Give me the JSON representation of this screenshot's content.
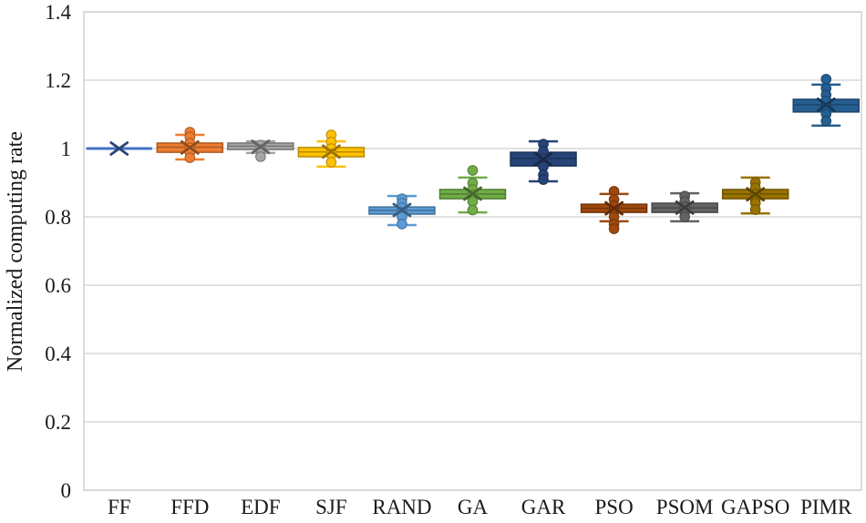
{
  "figure": {
    "background": "#ffffff",
    "grid_color": "#d9d9d9",
    "axis_color": "#d0cece",
    "text_color": "#1a1a1a"
  },
  "chart_data": {
    "type": "boxplot",
    "title": "",
    "xlabel": "",
    "ylabel": "Normalized computing rate",
    "ylim": [
      0,
      1.4
    ],
    "ytick_interval": 0.2,
    "ytick_labels": [
      "0",
      "0.2",
      "0.4",
      "0.6",
      "0.8",
      "1",
      "1.2",
      "1.4"
    ],
    "grid": true,
    "legend": "none",
    "categories": [
      "FF",
      "FFD",
      "EDF",
      "SJF",
      "RAND",
      "GA",
      "GAR",
      "PSO",
      "PSOM",
      "GAPSO",
      "PIMR"
    ],
    "series": [
      {
        "name": "FF",
        "color": "#4472C4",
        "whisker_low": 1.0,
        "q1": 1.0,
        "median": 1.0,
        "q3": 1.0,
        "whisker_high": 1.0,
        "mean": 1.0,
        "points": []
      },
      {
        "name": "FFD",
        "color": "#ED7D31",
        "whisker_low": 0.968,
        "q1": 0.989,
        "median": 1.004,
        "q3": 1.016,
        "whisker_high": 1.04,
        "mean": 1.003,
        "points": [
          1.048,
          1.034,
          1.016,
          1.002,
          0.988,
          0.973
        ]
      },
      {
        "name": "EDF",
        "color": "#A5A5A5",
        "whisker_low": 0.987,
        "q1": 0.997,
        "median": 1.007,
        "q3": 1.016,
        "whisker_high": 1.021,
        "mean": 1.005,
        "points": [
          1.01,
          0.997,
          0.976
        ]
      },
      {
        "name": "SJF",
        "color": "#FFC000",
        "whisker_low": 0.947,
        "q1": 0.976,
        "median": 0.99,
        "q3": 1.003,
        "whisker_high": 1.021,
        "mean": 0.991,
        "points": [
          1.04,
          1.019,
          1.0,
          0.984,
          0.96
        ]
      },
      {
        "name": "RAND",
        "color": "#5B9BD5",
        "whisker_low": 0.776,
        "q1": 0.808,
        "median": 0.819,
        "q3": 0.829,
        "whisker_high": 0.861,
        "mean": 0.82,
        "points": [
          0.853,
          0.84,
          0.827,
          0.813,
          0.8,
          0.779
        ]
      },
      {
        "name": "GA",
        "color": "#70AD47",
        "whisker_low": 0.813,
        "q1": 0.853,
        "median": 0.867,
        "q3": 0.88,
        "whisker_high": 0.915,
        "mean": 0.868,
        "points": [
          0.936,
          0.899,
          0.88,
          0.864,
          0.845,
          0.82
        ]
      },
      {
        "name": "GAR",
        "color": "#264478",
        "whisker_low": 0.904,
        "q1": 0.949,
        "median": 0.971,
        "q3": 0.989,
        "whisker_high": 1.021,
        "mean": 0.969,
        "points": [
          1.013,
          0.992,
          0.971,
          0.947,
          0.923,
          0.909
        ]
      },
      {
        "name": "PSO",
        "color": "#9E480E",
        "whisker_low": 0.787,
        "q1": 0.813,
        "median": 0.825,
        "q3": 0.837,
        "whisker_high": 0.867,
        "mean": 0.825,
        "points": [
          0.875,
          0.851,
          0.832,
          0.816,
          0.8,
          0.779,
          0.765
        ]
      },
      {
        "name": "PSOM",
        "color": "#636363",
        "whisker_low": 0.787,
        "q1": 0.813,
        "median": 0.826,
        "q3": 0.84,
        "whisker_high": 0.869,
        "mean": 0.827,
        "points": [
          0.861,
          0.845,
          0.829,
          0.813,
          0.8
        ]
      },
      {
        "name": "GAPSO",
        "color": "#997300",
        "whisker_low": 0.81,
        "q1": 0.853,
        "median": 0.867,
        "q3": 0.88,
        "whisker_high": 0.915,
        "mean": 0.866,
        "points": [
          0.901,
          0.885,
          0.867,
          0.851,
          0.84,
          0.821
        ]
      },
      {
        "name": "PIMR",
        "color": "#255E91",
        "whisker_low": 1.067,
        "q1": 1.107,
        "median": 1.128,
        "q3": 1.144,
        "whisker_high": 1.187,
        "mean": 1.128,
        "points": [
          1.203,
          1.176,
          1.157,
          1.139,
          1.12,
          1.101,
          1.08
        ]
      }
    ]
  }
}
